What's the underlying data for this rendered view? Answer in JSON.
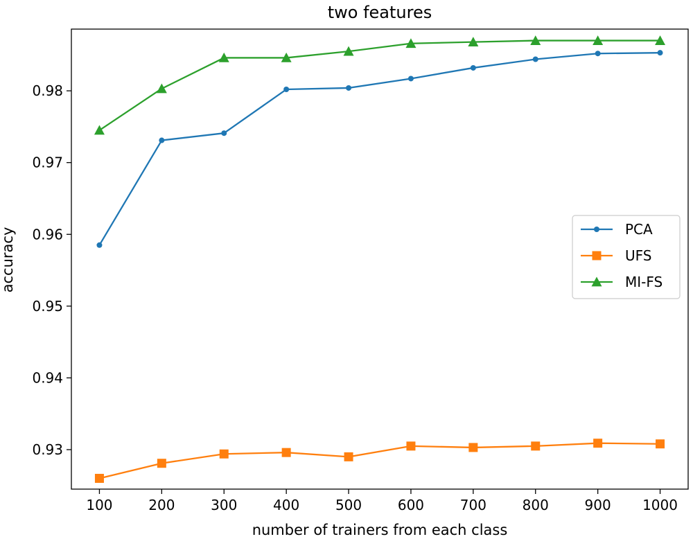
{
  "chart_data": {
    "type": "line",
    "title": "two features",
    "xlabel": "number of trainers from each class",
    "ylabel": "accuracy",
    "x": [
      100,
      200,
      300,
      400,
      500,
      600,
      700,
      800,
      900,
      1000
    ],
    "xticks": [
      "100",
      "200",
      "300",
      "400",
      "500",
      "600",
      "700",
      "800",
      "900",
      "1000"
    ],
    "yticks": [
      0.93,
      0.94,
      0.95,
      0.96,
      0.97,
      0.98
    ],
    "ytick_labels": [
      "0.93",
      "0.94",
      "0.95",
      "0.96",
      "0.97",
      "0.98"
    ],
    "xlim": [
      55,
      1045
    ],
    "ylim": [
      0.9245,
      0.9886
    ],
    "grid": false,
    "legend_position": "center-right",
    "series": [
      {
        "name": "PCA",
        "color": "#1f77b4",
        "marker": "circle",
        "values": [
          0.9585,
          0.9731,
          0.9741,
          0.9802,
          0.9804,
          0.9817,
          0.9832,
          0.9844,
          0.9852,
          0.9853
        ]
      },
      {
        "name": "UFS",
        "color": "#ff7f0e",
        "marker": "square",
        "values": [
          0.926,
          0.9281,
          0.9294,
          0.9296,
          0.929,
          0.9305,
          0.9303,
          0.9305,
          0.9309,
          0.9308
        ]
      },
      {
        "name": "MI-FS",
        "color": "#2ca02c",
        "marker": "triangle",
        "values": [
          0.9745,
          0.9803,
          0.9846,
          0.9846,
          0.9855,
          0.9866,
          0.9868,
          0.987,
          0.987,
          0.987
        ]
      }
    ]
  }
}
